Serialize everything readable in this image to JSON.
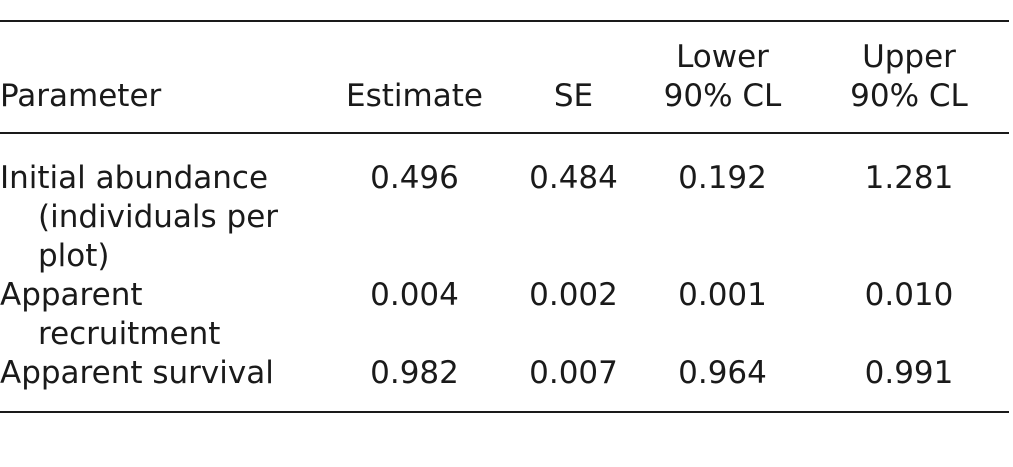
{
  "table": {
    "headers": {
      "parameter": "Parameter",
      "estimate": "Estimate",
      "se": "SE",
      "lower_line1": "Lower",
      "lower_line2": "90% CL",
      "upper_line1": "Upper",
      "upper_line2": "90% CL"
    },
    "rows": [
      {
        "parameter": "Initial abundance (individuals per plot)",
        "estimate": "0.496",
        "se": "0.484",
        "lower": "0.192",
        "upper": "1.281"
      },
      {
        "parameter": "Apparent recruitment",
        "estimate": "0.004",
        "se": "0.002",
        "lower": "0.001",
        "upper": "0.010"
      },
      {
        "parameter": "Apparent survival",
        "estimate": "0.982",
        "se": "0.007",
        "lower": "0.964",
        "upper": "0.991"
      }
    ]
  }
}
